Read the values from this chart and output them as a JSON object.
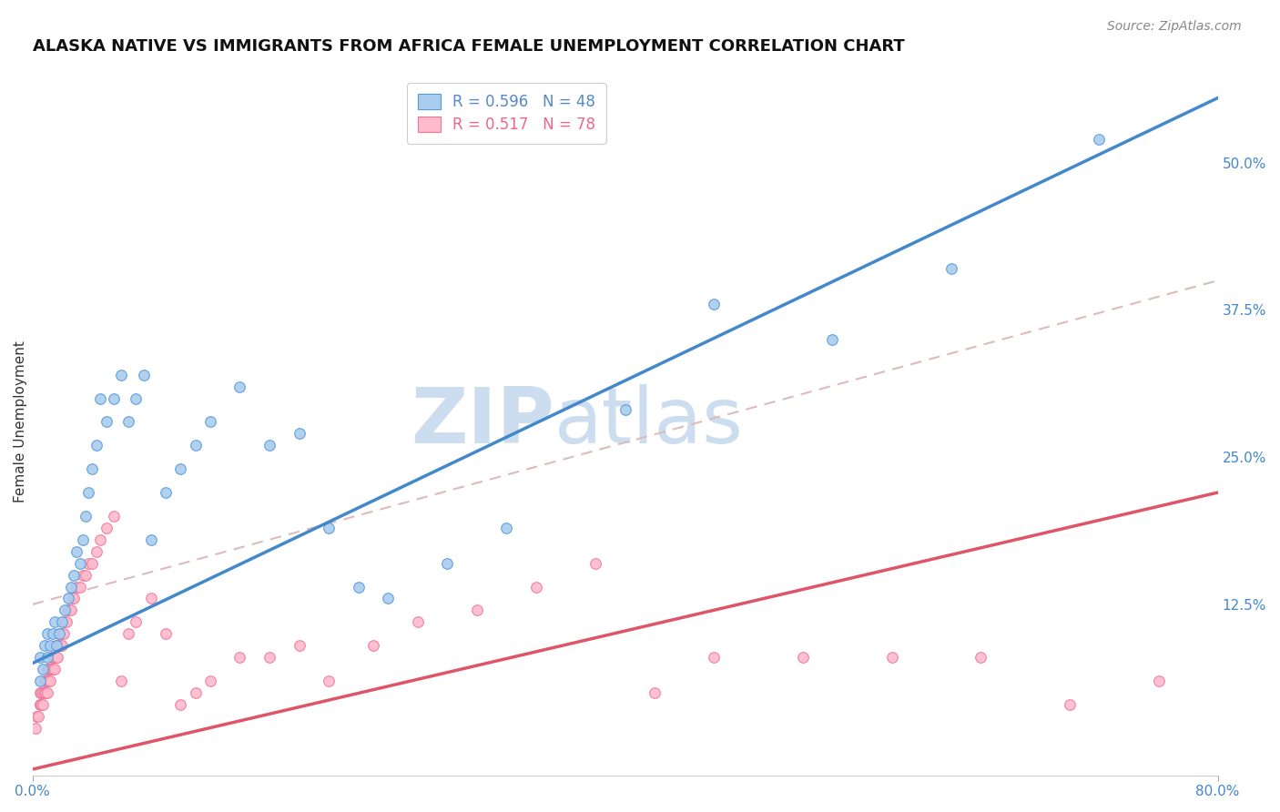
{
  "title": "ALASKA NATIVE VS IMMIGRANTS FROM AFRICA FEMALE UNEMPLOYMENT CORRELATION CHART",
  "source": "Source: ZipAtlas.com",
  "ylabel": "Female Unemployment",
  "xlim": [
    0,
    0.8
  ],
  "ylim": [
    -0.02,
    0.58
  ],
  "right_yticks": [
    0.125,
    0.25,
    0.375,
    0.5
  ],
  "right_yticklabels": [
    "12.5%",
    "25.0%",
    "37.5%",
    "50.0%"
  ],
  "legend_entries": [
    {
      "label": "R = 0.596   N = 48",
      "color": "#5588cc"
    },
    {
      "label": "R = 0.517   N = 78",
      "color": "#ee6688"
    }
  ],
  "alaska_scatter_color": "#aaccee",
  "africa_scatter_color": "#ffbbcc",
  "alaska_edge_color": "#5599dd",
  "africa_edge_color": "#ee7799",
  "alaska_line_color": "#4488cc",
  "africa_line_color": "#dd5566",
  "dashed_line_color": "#ddbbbb",
  "watermark_color": "#ccddf0",
  "background_color": "#ffffff",
  "grid_color": "#e0e0e0",
  "alaska_line_x0": 0.0,
  "alaska_line_y0": 0.075,
  "alaska_line_x1": 0.8,
  "alaska_line_y1": 0.555,
  "africa_line_x0": 0.0,
  "africa_line_y0": -0.015,
  "africa_line_x1": 0.8,
  "africa_line_y1": 0.22,
  "dashed_line_x0": 0.0,
  "dashed_line_y0": 0.125,
  "dashed_line_x1": 0.8,
  "dashed_line_y1": 0.4,
  "alaska_x": [
    0.005,
    0.005,
    0.007,
    0.008,
    0.01,
    0.01,
    0.012,
    0.014,
    0.015,
    0.016,
    0.018,
    0.02,
    0.022,
    0.024,
    0.026,
    0.028,
    0.03,
    0.032,
    0.034,
    0.036,
    0.038,
    0.04,
    0.043,
    0.046,
    0.05,
    0.055,
    0.06,
    0.065,
    0.07,
    0.075,
    0.08,
    0.09,
    0.1,
    0.11,
    0.12,
    0.14,
    0.16,
    0.18,
    0.2,
    0.22,
    0.24,
    0.28,
    0.32,
    0.4,
    0.46,
    0.54,
    0.62,
    0.72
  ],
  "alaska_y": [
    0.06,
    0.08,
    0.07,
    0.09,
    0.08,
    0.1,
    0.09,
    0.1,
    0.11,
    0.09,
    0.1,
    0.11,
    0.12,
    0.13,
    0.14,
    0.15,
    0.17,
    0.16,
    0.18,
    0.2,
    0.22,
    0.24,
    0.26,
    0.3,
    0.28,
    0.3,
    0.32,
    0.28,
    0.3,
    0.32,
    0.18,
    0.22,
    0.24,
    0.26,
    0.28,
    0.31,
    0.26,
    0.27,
    0.19,
    0.14,
    0.13,
    0.16,
    0.19,
    0.29,
    0.38,
    0.35,
    0.41,
    0.52
  ],
  "africa_x": [
    0.002,
    0.003,
    0.004,
    0.005,
    0.005,
    0.005,
    0.006,
    0.006,
    0.007,
    0.007,
    0.008,
    0.008,
    0.009,
    0.009,
    0.01,
    0.01,
    0.01,
    0.011,
    0.011,
    0.012,
    0.012,
    0.013,
    0.013,
    0.014,
    0.014,
    0.015,
    0.015,
    0.016,
    0.016,
    0.017,
    0.017,
    0.018,
    0.018,
    0.019,
    0.02,
    0.02,
    0.021,
    0.022,
    0.023,
    0.024,
    0.025,
    0.026,
    0.027,
    0.028,
    0.03,
    0.032,
    0.034,
    0.036,
    0.038,
    0.04,
    0.043,
    0.046,
    0.05,
    0.055,
    0.06,
    0.065,
    0.07,
    0.08,
    0.09,
    0.1,
    0.11,
    0.12,
    0.14,
    0.16,
    0.18,
    0.2,
    0.23,
    0.26,
    0.3,
    0.34,
    0.38,
    0.42,
    0.46,
    0.52,
    0.58,
    0.64,
    0.7,
    0.76
  ],
  "africa_y": [
    0.02,
    0.03,
    0.03,
    0.04,
    0.04,
    0.05,
    0.04,
    0.05,
    0.04,
    0.05,
    0.05,
    0.06,
    0.05,
    0.06,
    0.05,
    0.06,
    0.07,
    0.06,
    0.07,
    0.06,
    0.07,
    0.07,
    0.08,
    0.07,
    0.08,
    0.07,
    0.08,
    0.08,
    0.09,
    0.08,
    0.09,
    0.09,
    0.1,
    0.09,
    0.09,
    0.1,
    0.1,
    0.11,
    0.11,
    0.12,
    0.12,
    0.12,
    0.13,
    0.13,
    0.14,
    0.14,
    0.15,
    0.15,
    0.16,
    0.16,
    0.17,
    0.18,
    0.19,
    0.2,
    0.06,
    0.1,
    0.11,
    0.13,
    0.1,
    0.04,
    0.05,
    0.06,
    0.08,
    0.08,
    0.09,
    0.06,
    0.09,
    0.11,
    0.12,
    0.14,
    0.16,
    0.05,
    0.08,
    0.08,
    0.08,
    0.08,
    0.04,
    0.06
  ],
  "title_fontsize": 13,
  "axis_label_fontsize": 11,
  "tick_fontsize": 11,
  "legend_fontsize": 12
}
